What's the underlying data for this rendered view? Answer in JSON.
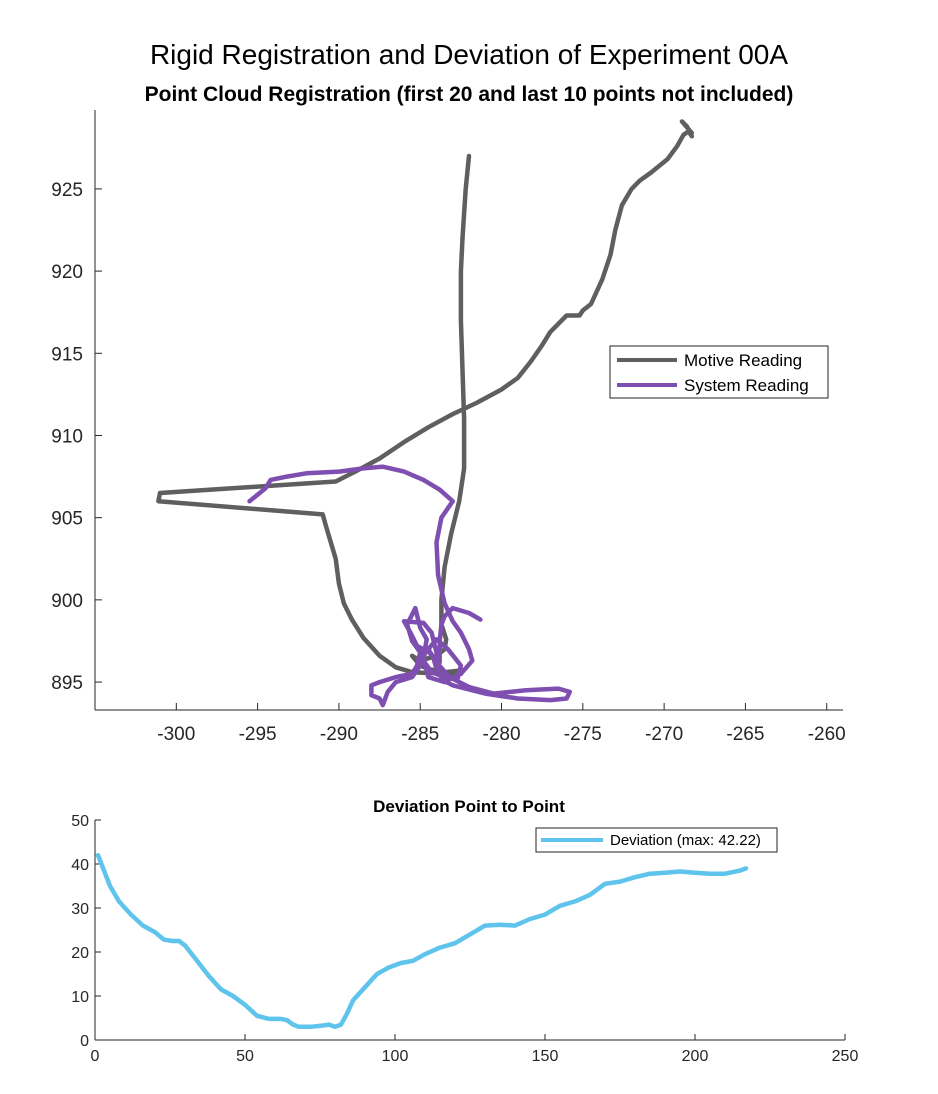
{
  "figure": {
    "title": "Rigid Registration and Deviation of Experiment 00A"
  },
  "chart_data": [
    {
      "type": "line",
      "title": "Point Cloud Registration (first 20 and last 10 points not included)",
      "xlabel": "",
      "ylabel": "",
      "xlim": [
        -305,
        -259
      ],
      "ylim": [
        893.3,
        929.8
      ],
      "xticks": [
        -300,
        -295,
        -290,
        -285,
        -280,
        -275,
        -270,
        -265,
        -260
      ],
      "yticks": [
        895,
        900,
        905,
        910,
        915,
        920,
        925
      ],
      "grid": false,
      "legend_position": "right",
      "series": [
        {
          "name": "Motive Reading",
          "color": "#5f5f5f",
          "points": [
            [
              -282.0,
              927.0
            ],
            [
              -282.2,
              925.0
            ],
            [
              -282.4,
              922.0
            ],
            [
              -282.5,
              920.0
            ],
            [
              -282.5,
              917.0
            ],
            [
              -282.4,
              914.0
            ],
            [
              -282.3,
              911.0
            ],
            [
              -282.3,
              908.0
            ],
            [
              -282.6,
              906.0
            ],
            [
              -283.1,
              904.0
            ],
            [
              -283.5,
              902.0
            ],
            [
              -283.7,
              900.0
            ],
            [
              -283.7,
              898.5
            ],
            [
              -283.4,
              897.6
            ],
            [
              -283.5,
              897.0
            ],
            [
              -284.0,
              896.6
            ],
            [
              -285.0,
              896.3
            ],
            [
              -285.5,
              896.6
            ],
            [
              -285.0,
              896.0
            ],
            [
              -284.5,
              895.8
            ],
            [
              -283.5,
              895.6
            ],
            [
              -282.5,
              895.7
            ],
            [
              -282.5,
              895.5
            ],
            [
              -283.5,
              895.5
            ],
            [
              -285.5,
              895.6
            ],
            [
              -286.5,
              895.9
            ],
            [
              -287.5,
              896.6
            ],
            [
              -288.5,
              897.7
            ],
            [
              -289.2,
              898.8
            ],
            [
              -289.7,
              899.8
            ],
            [
              -290.0,
              901.0
            ],
            [
              -290.2,
              902.5
            ],
            [
              -290.5,
              903.5
            ],
            [
              -290.8,
              904.5
            ],
            [
              -291.0,
              905.2
            ],
            [
              -301.1,
              906.0
            ],
            [
              -301.0,
              906.5
            ],
            [
              -290.2,
              907.2
            ],
            [
              -289.0,
              907.8
            ],
            [
              -287.5,
              908.6
            ],
            [
              -286.0,
              909.6
            ],
            [
              -284.5,
              910.5
            ],
            [
              -283.0,
              911.3
            ],
            [
              -281.5,
              912.0
            ],
            [
              -280.0,
              912.8
            ],
            [
              -279.0,
              913.5
            ],
            [
              -278.2,
              914.5
            ],
            [
              -277.5,
              915.5
            ],
            [
              -277.0,
              916.3
            ],
            [
              -276.0,
              917.3
            ],
            [
              -275.2,
              917.3
            ],
            [
              -275.0,
              917.6
            ],
            [
              -274.5,
              918.0
            ],
            [
              -273.8,
              919.5
            ],
            [
              -273.3,
              921.0
            ],
            [
              -273.0,
              922.5
            ],
            [
              -272.6,
              924.0
            ],
            [
              -272.0,
              925.0
            ],
            [
              -271.5,
              925.5
            ],
            [
              -270.8,
              926.0
            ],
            [
              -269.8,
              926.8
            ],
            [
              -269.2,
              927.6
            ],
            [
              -268.8,
              928.3
            ],
            [
              -268.5,
              928.5
            ],
            [
              -268.3,
              928.2
            ],
            [
              -268.6,
              928.8
            ],
            [
              -268.9,
              929.1
            ],
            [
              -268.3,
              928.4
            ]
          ]
        },
        {
          "name": "System Reading",
          "color": "#7e4fb0",
          "points": [
            [
              -295.5,
              906.0
            ],
            [
              -294.5,
              906.8
            ],
            [
              -294.2,
              907.3
            ],
            [
              -293.2,
              907.5
            ],
            [
              -292.0,
              907.7
            ],
            [
              -290.0,
              907.8
            ],
            [
              -288.5,
              908.0
            ],
            [
              -287.3,
              908.1
            ],
            [
              -286.0,
              907.8
            ],
            [
              -284.8,
              907.3
            ],
            [
              -283.8,
              906.7
            ],
            [
              -283.0,
              906.0
            ],
            [
              -283.7,
              905.0
            ],
            [
              -284.0,
              903.5
            ],
            [
              -283.9,
              901.5
            ],
            [
              -283.5,
              899.8
            ],
            [
              -283.0,
              898.7
            ],
            [
              -282.5,
              898.0
            ],
            [
              -282.0,
              897.0
            ],
            [
              -281.8,
              896.3
            ],
            [
              -282.5,
              895.5
            ],
            [
              -283.5,
              895.0
            ],
            [
              -284.5,
              895.3
            ],
            [
              -284.8,
              896.5
            ],
            [
              -284.6,
              897.6
            ],
            [
              -285.0,
              898.3
            ],
            [
              -285.3,
              899.5
            ],
            [
              -285.8,
              898.5
            ],
            [
              -285.5,
              897.5
            ],
            [
              -285.0,
              896.8
            ],
            [
              -285.2,
              896.0
            ],
            [
              -285.5,
              895.5
            ],
            [
              -286.5,
              895.3
            ],
            [
              -287.5,
              895.0
            ],
            [
              -288.0,
              894.8
            ],
            [
              -288.0,
              894.2
            ],
            [
              -287.5,
              894.0
            ],
            [
              -287.3,
              893.6
            ],
            [
              -287.0,
              894.4
            ],
            [
              -286.5,
              895.0
            ],
            [
              -285.5,
              895.3
            ],
            [
              -285.0,
              896.0
            ],
            [
              -284.6,
              897.0
            ],
            [
              -284.2,
              896.5
            ],
            [
              -284.0,
              895.8
            ],
            [
              -283.6,
              895.1
            ],
            [
              -283.0,
              894.8
            ],
            [
              -281.0,
              894.3
            ],
            [
              -279.0,
              894.0
            ],
            [
              -277.0,
              893.9
            ],
            [
              -276.0,
              894.0
            ],
            [
              -275.8,
              894.4
            ],
            [
              -276.5,
              894.6
            ],
            [
              -278.5,
              894.5
            ],
            [
              -280.5,
              894.3
            ],
            [
              -282.0,
              894.7
            ],
            [
              -283.2,
              895.3
            ],
            [
              -284.0,
              896.2
            ],
            [
              -284.5,
              897.0
            ],
            [
              -284.0,
              897.6
            ],
            [
              -283.3,
              897.0
            ],
            [
              -282.5,
              896.0
            ],
            [
              -282.7,
              895.2
            ],
            [
              -283.5,
              895.3
            ],
            [
              -284.3,
              895.6
            ],
            [
              -284.8,
              896.3
            ],
            [
              -284.8,
              897.0
            ],
            [
              -285.2,
              897.2
            ],
            [
              -285.6,
              898.0
            ],
            [
              -286.0,
              898.7
            ],
            [
              -284.8,
              898.6
            ],
            [
              -284.3,
              898.0
            ],
            [
              -284.0,
              896.8
            ],
            [
              -283.8,
              896.2
            ],
            [
              -283.8,
              897.5
            ],
            [
              -283.7,
              898.5
            ],
            [
              -283.5,
              899.0
            ],
            [
              -283.0,
              899.5
            ],
            [
              -282.0,
              899.2
            ],
            [
              -281.3,
              898.8
            ]
          ]
        }
      ]
    },
    {
      "type": "line",
      "title": "Deviation Point to Point",
      "xlabel": "",
      "ylabel": "",
      "xlim": [
        0,
        250
      ],
      "ylim": [
        0,
        50
      ],
      "xticks": [
        0,
        50,
        100,
        150,
        200,
        250
      ],
      "yticks": [
        0,
        10,
        20,
        30,
        40,
        50
      ],
      "grid": false,
      "legend_position": "top-right",
      "series": [
        {
          "name": "Deviation (max: 42.22)",
          "color": "#5ec4ec",
          "x": [
            1,
            3,
            5,
            8,
            12,
            16,
            20,
            23,
            26,
            28,
            30,
            34,
            38,
            42,
            46,
            50,
            54,
            58,
            62,
            64,
            66,
            68,
            72,
            76,
            78,
            80,
            82,
            84,
            86,
            90,
            94,
            98,
            102,
            106,
            110,
            115,
            120,
            125,
            130,
            135,
            140,
            145,
            150,
            155,
            160,
            165,
            170,
            175,
            180,
            185,
            190,
            195,
            200,
            205,
            210,
            215,
            217
          ],
          "y": [
            42.0,
            38.5,
            35.0,
            31.5,
            28.5,
            26.0,
            24.5,
            22.8,
            22.5,
            22.5,
            21.5,
            18.0,
            14.5,
            11.5,
            10.0,
            8.0,
            5.5,
            4.8,
            4.8,
            4.5,
            3.5,
            3.0,
            3.0,
            3.3,
            3.5,
            3.0,
            3.5,
            6.0,
            9.0,
            12.0,
            15.0,
            16.5,
            17.5,
            18.0,
            19.5,
            21.0,
            22.0,
            24.0,
            26.0,
            26.2,
            26.0,
            27.5,
            28.5,
            30.5,
            31.5,
            33.0,
            35.5,
            36.0,
            37.0,
            37.8,
            38.0,
            38.3,
            38.0,
            37.8,
            37.8,
            38.5,
            39.0
          ]
        }
      ]
    }
  ]
}
